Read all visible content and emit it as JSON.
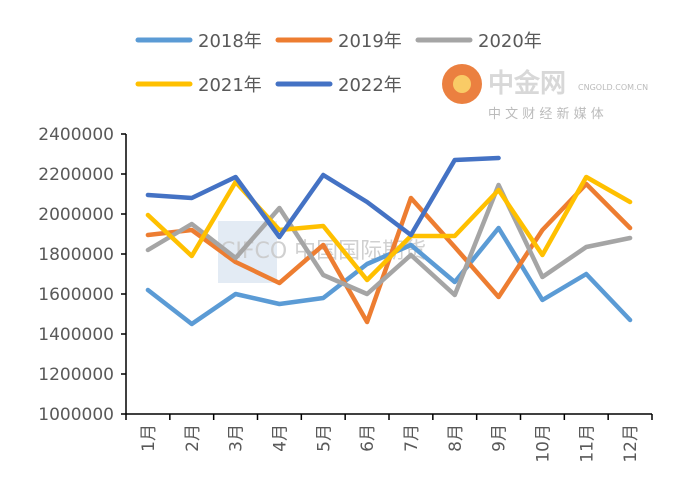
{
  "chart_data": {
    "type": "line",
    "categories": [
      "1月",
      "2月",
      "3月",
      "4月",
      "5月",
      "6月",
      "7月",
      "8月",
      "9月",
      "10月",
      "11月",
      "12月"
    ],
    "ylim": [
      1000000,
      2400000
    ],
    "yticks": [
      "1000000",
      "1200000",
      "1400000",
      "1600000",
      "1800000",
      "2000000",
      "2200000",
      "2400000"
    ],
    "grid": false,
    "legend_position": "top",
    "series": [
      {
        "name": "2018年",
        "color": "#5B9BD5",
        "values": [
          1620000,
          1450000,
          1600000,
          1550000,
          1580000,
          1750000,
          1845000,
          1660000,
          1930000,
          1570000,
          1700000,
          1470000
        ]
      },
      {
        "name": "2019年",
        "color": "#ED7D31",
        "values": [
          1895000,
          1920000,
          1760000,
          1655000,
          1845000,
          1460000,
          2080000,
          1835000,
          1585000,
          1920000,
          2150000,
          1930000
        ]
      },
      {
        "name": "2020年",
        "color": "#A5A5A5",
        "values": [
          1820000,
          1950000,
          1780000,
          2030000,
          1695000,
          1600000,
          1795000,
          1595000,
          2145000,
          1685000,
          1835000,
          1880000
        ]
      },
      {
        "name": "2021年",
        "color": "#FFC000",
        "values": [
          1995000,
          1790000,
          2160000,
          1920000,
          1940000,
          1670000,
          1890000,
          1890000,
          2120000,
          1795000,
          2185000,
          2060000
        ]
      },
      {
        "name": "2022年",
        "color": "#4472C4",
        "values": [
          2095000,
          2080000,
          2185000,
          1885000,
          2195000,
          2060000,
          1895000,
          2270000,
          2280000,
          null,
          null,
          null
        ]
      }
    ]
  },
  "watermarks": {
    "cifco": "CIFCO 中国国际期货",
    "cngold": "中金网",
    "cngold_url": "CNGOLD.COM.CN",
    "cngold_slogan": "中 文 财 经 新 媒 体"
  }
}
